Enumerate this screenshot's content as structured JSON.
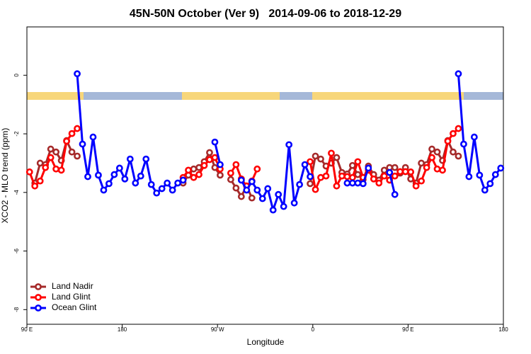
{
  "chart_data": {
    "type": "line",
    "title": "45N-50N October (Ver 9)   2014-09-06 to 2018-12-29",
    "xlabel": "Longitude",
    "ylabel": "XCO2 - MLO trend (ppm)",
    "xlim": [
      90,
      540
    ],
    "ylim": [
      -8.5,
      1.65
    ],
    "xticks": [
      {
        "value": 90,
        "label": "90 E"
      },
      180,
      {
        "value": 270,
        "label": "90 W"
      },
      {
        "value": 360,
        "label": "0"
      },
      {
        "value": 450,
        "label": "90 E"
      },
      {
        "value": 540,
        "label": "180"
      }
    ],
    "yticks": [
      0,
      -2,
      -4,
      -6,
      -8
    ],
    "legend": "bottom-left",
    "series": [
      {
        "name": "Land Nadir",
        "color": "#a52a2a",
        "x": [
          97.5,
          102.5,
          107.5,
          112.5,
          117.5,
          122.5,
          127.5,
          132.5,
          137.5,
          null,
          237.5,
          242.5,
          247.5,
          252.5,
          257.5,
          262.5,
          267.5,
          272.5,
          null,
          282.5,
          287.5,
          292.5,
          297.5,
          302.5,
          null,
          357.5,
          362.5,
          367.5,
          372.5,
          377.5,
          382.5,
          387.5,
          392.5,
          397.5,
          402.5,
          407.5,
          412.5,
          417.5,
          422.5,
          427.5,
          432.5,
          437.5,
          442.5,
          447.5,
          452.5,
          457.5,
          462.5,
          467.5,
          472.5,
          477.5,
          482.5,
          487.5,
          492.5,
          497.5
        ],
        "values": [
          -3.68,
          -3.0,
          -3.05,
          -2.52,
          -2.62,
          -2.91,
          -2.23,
          -2.62,
          -2.76,
          null,
          -3.68,
          -3.41,
          -3.2,
          -3.15,
          -2.95,
          -2.64,
          -3.15,
          -3.41,
          null,
          -3.56,
          -3.85,
          -4.14,
          -3.78,
          -4.19,
          null,
          -3.7,
          -2.76,
          -2.86,
          -3.1,
          -3.0,
          -2.81,
          -3.32,
          -3.37,
          -3.08,
          -3.39,
          -3.56,
          -3.1,
          -3.39,
          -3.58,
          -3.24,
          -3.15,
          -3.15,
          -3.34,
          -3.15,
          -3.54,
          -3.68,
          -3.0,
          -3.05,
          -2.52,
          -2.62,
          -2.91,
          -2.23,
          -2.62,
          -2.76
        ]
      },
      {
        "name": "Land Glint",
        "color": "#ff0000",
        "x": [
          92.5,
          97.5,
          102.5,
          107.5,
          112.5,
          117.5,
          122.5,
          127.5,
          132.5,
          137.5,
          null,
          237.5,
          242.5,
          247.5,
          252.5,
          257.5,
          262.5,
          267.5,
          272.5,
          null,
          282.5,
          287.5,
          292.5,
          297.5,
          302.5,
          307.5,
          null,
          357.5,
          362.5,
          367.5,
          372.5,
          377.5,
          382.5,
          387.5,
          392.5,
          397.5,
          402.5,
          407.5,
          412.5,
          417.5,
          422.5,
          427.5,
          432.5,
          437.5,
          442.5,
          447.5,
          452.5,
          457.5,
          462.5,
          467.5,
          472.5,
          477.5,
          482.5,
          487.5,
          492.5,
          497.5
        ],
        "values": [
          -3.3,
          -3.78,
          -3.61,
          -3.15,
          -2.81,
          -3.2,
          -3.24,
          -2.25,
          -1.99,
          -1.82,
          null,
          -3.49,
          -3.24,
          -3.49,
          -3.39,
          -3.08,
          -2.88,
          -2.81,
          -3.2,
          null,
          -3.34,
          -3.05,
          -3.54,
          -3.78,
          -3.61,
          -3.2,
          null,
          -2.95,
          -3.9,
          -3.49,
          -3.44,
          -2.66,
          -3.78,
          -3.44,
          -3.46,
          -3.49,
          -2.95,
          -3.49,
          -3.24,
          -3.54,
          -3.68,
          -3.44,
          -3.58,
          -3.44,
          -3.29,
          -3.29,
          -3.3,
          -3.78,
          -3.61,
          -3.15,
          -2.81,
          -3.2,
          -3.24,
          -2.25,
          -1.99,
          -1.82
        ]
      },
      {
        "name": "Ocean Glint",
        "color": "#0000ff",
        "x": [
          137.5,
          142.5,
          147.5,
          152.5,
          157.5,
          162.5,
          167.5,
          172.5,
          177.5,
          182.5,
          187.5,
          192.5,
          197.5,
          202.5,
          207.5,
          212.5,
          217.5,
          222.5,
          227.5,
          232.5,
          237.5,
          null,
          267.5,
          272.5,
          null,
          292.5,
          297.5,
          302.5,
          307.5,
          312.5,
          317.5,
          322.5,
          327.5,
          332.5,
          337.5,
          342.5,
          347.5,
          352.5,
          357.5,
          null,
          392.5,
          397.5,
          402.5,
          407.5,
          412.5,
          null,
          432.5,
          437.5,
          null,
          497.5,
          502.5,
          507.5,
          512.5,
          517.5,
          522.5,
          527.5,
          532.5,
          537.5
        ],
        "values": [
          0.05,
          -2.35,
          -3.46,
          -2.11,
          -3.41,
          -3.92,
          -3.7,
          -3.39,
          -3.17,
          -3.54,
          -2.86,
          -3.68,
          -3.44,
          -2.86,
          -3.73,
          -4.02,
          -3.87,
          -3.68,
          -3.92,
          -3.68,
          -3.58,
          null,
          -2.28,
          -3.05,
          null,
          -3.58,
          -3.92,
          -3.63,
          -3.92,
          -4.21,
          -3.87,
          -4.6,
          -4.07,
          -4.48,
          -2.37,
          -4.36,
          -3.73,
          -3.05,
          -3.46,
          null,
          -3.68,
          -3.68,
          -3.68,
          -3.7,
          -3.17,
          null,
          -3.32,
          -4.07,
          null,
          0.05,
          -2.35,
          -3.46,
          -2.11,
          -3.41,
          -3.92,
          -3.7,
          -3.39,
          -3.17
        ]
      }
    ]
  }
}
